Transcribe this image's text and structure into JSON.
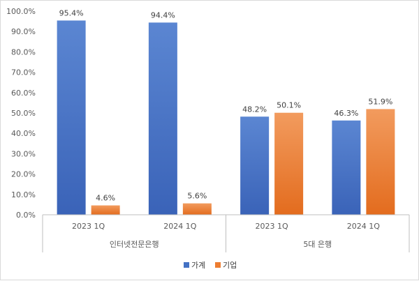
{
  "chart_data": {
    "type": "bar",
    "groups": [
      {
        "label": "인터넷전문은행",
        "categories": [
          "2023 1Q",
          "2024 1Q"
        ]
      },
      {
        "label": "5대 은행",
        "categories": [
          "2023 1Q",
          "2024 1Q"
        ]
      }
    ],
    "categories": [
      "2023 1Q",
      "2024 1Q",
      "2023 1Q",
      "2024 1Q"
    ],
    "series": [
      {
        "name": "가계",
        "values": [
          95.4,
          94.4,
          48.2,
          46.3
        ],
        "labels": [
          "95.4%",
          "94.4%",
          "48.2%",
          "46.3%"
        ],
        "color": "#4472C4"
      },
      {
        "name": "기업",
        "values": [
          4.6,
          5.6,
          50.1,
          51.9
        ],
        "labels": [
          "4.6%",
          "5.6%",
          "50.1%",
          "51.9%"
        ],
        "color": "#ED7D31"
      }
    ],
    "yticks": [
      "0.0%",
      "10.0%",
      "20.0%",
      "30.0%",
      "40.0%",
      "50.0%",
      "60.0%",
      "70.0%",
      "80.0%",
      "90.0%",
      "100.0%"
    ],
    "ylim": [
      0,
      100
    ],
    "legend_position": "bottom",
    "grid": false
  }
}
